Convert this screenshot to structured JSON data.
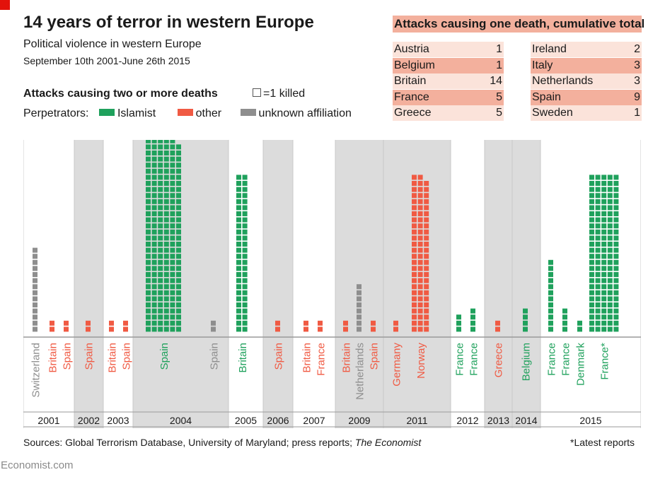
{
  "header": {
    "title": "14 years of terror in western Europe",
    "subtitle": "Political violence in western Europe",
    "date_range": "September 10th 2001-June 26th 2015"
  },
  "legend": {
    "multi_heading": "Attacks causing two or more deaths",
    "unit_key": "=1 killed",
    "perpetrators_label": "Perpetrators:",
    "islamist": "Islamist",
    "other": "other",
    "unknown": "unknown affiliation"
  },
  "colors": {
    "islamist": "#1fa15c",
    "other": "#f05a43",
    "unknown": "#8e8e8e",
    "band": "#dcdcdc",
    "table_band": "#f3b09d",
    "table_light": "#fbe3da",
    "brand_red": "#e3120b"
  },
  "single_deaths": {
    "heading": "Attacks causing one death, cumulative total",
    "left": [
      {
        "country": "Austria",
        "count": "1"
      },
      {
        "country": "Belgium",
        "count": "1"
      },
      {
        "country": "Britain",
        "count": "14"
      },
      {
        "country": "France",
        "count": "5"
      },
      {
        "country": "Greece",
        "count": "5"
      }
    ],
    "right": [
      {
        "country": "Ireland",
        "count": "2"
      },
      {
        "country": "Italy",
        "count": "3"
      },
      {
        "country": "Netherlands",
        "count": "3"
      },
      {
        "country": "Spain",
        "count": "9"
      },
      {
        "country": "Sweden",
        "count": "1"
      }
    ]
  },
  "chart_data": {
    "type": "bar",
    "title": "Attacks causing two or more deaths",
    "unit": "=1 killed",
    "categories": [
      "2001",
      "2002",
      "2003",
      "2004",
      "2005",
      "2006",
      "2007",
      "2009",
      "2011",
      "2012",
      "2013",
      "2014",
      "2015"
    ],
    "attacks": [
      {
        "year": "2001",
        "label": "Switzerland",
        "perpetrator": "unknown",
        "deaths": 14
      },
      {
        "year": "2001",
        "label": "Britain",
        "perpetrator": "other",
        "deaths": 2
      },
      {
        "year": "2001",
        "label": "Spain",
        "perpetrator": "other",
        "deaths": 2
      },
      {
        "year": "2002",
        "label": "Spain",
        "perpetrator": "other",
        "deaths": 2
      },
      {
        "year": "2003",
        "label": "Britain",
        "perpetrator": "other",
        "deaths": 2
      },
      {
        "year": "2003",
        "label": "Spain",
        "perpetrator": "other",
        "deaths": 2
      },
      {
        "year": "2004",
        "label": "Spain",
        "perpetrator": "islamist",
        "deaths": 191
      },
      {
        "year": "2004",
        "label": "Spain",
        "perpetrator": "unknown",
        "deaths": 2
      },
      {
        "year": "2005",
        "label": "Britain",
        "perpetrator": "islamist",
        "deaths": 52
      },
      {
        "year": "2006",
        "label": "Spain",
        "perpetrator": "other",
        "deaths": 2
      },
      {
        "year": "2007",
        "label": "Britain",
        "perpetrator": "other",
        "deaths": 2
      },
      {
        "year": "2007",
        "label": "France",
        "perpetrator": "other",
        "deaths": 2
      },
      {
        "year": "2009",
        "label": "Britain",
        "perpetrator": "other",
        "deaths": 2
      },
      {
        "year": "2009",
        "label": "Netherlands",
        "perpetrator": "unknown",
        "deaths": 8
      },
      {
        "year": "2009",
        "label": "Spain",
        "perpetrator": "other",
        "deaths": 2
      },
      {
        "year": "2011",
        "label": "Germany",
        "perpetrator": "other",
        "deaths": 2
      },
      {
        "year": "2011",
        "label": "Norway",
        "perpetrator": "other",
        "deaths": 77
      },
      {
        "year": "2012",
        "label": "France",
        "perpetrator": "islamist",
        "deaths": 3
      },
      {
        "year": "2012",
        "label": "France",
        "perpetrator": "islamist",
        "deaths": 4
      },
      {
        "year": "2013",
        "label": "Greece",
        "perpetrator": "other",
        "deaths": 2
      },
      {
        "year": "2014",
        "label": "Belgium",
        "perpetrator": "islamist",
        "deaths": 4
      },
      {
        "year": "2015",
        "label": "France",
        "perpetrator": "islamist",
        "deaths": 12
      },
      {
        "year": "2015",
        "label": "France",
        "perpetrator": "islamist",
        "deaths": 4
      },
      {
        "year": "2015",
        "label": "Denmark",
        "perpetrator": "islamist",
        "deaths": 2
      },
      {
        "year": "2015",
        "label": "France*",
        "perpetrator": "islamist",
        "deaths": 130
      }
    ]
  },
  "footer": {
    "source_prefix": "Sources: Global Terrorism Database, University of Maryland; press reports; ",
    "source_publication": "The Economist",
    "latest_note": "*Latest reports",
    "brand": "Economist.com"
  }
}
